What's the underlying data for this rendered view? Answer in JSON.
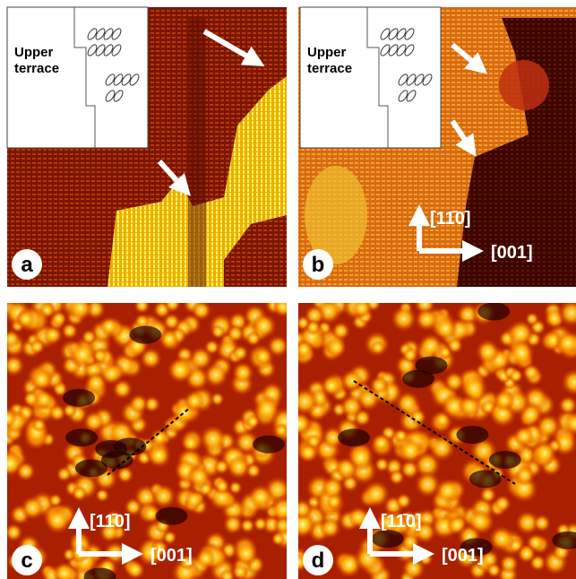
{
  "panels": [
    {
      "label": "a",
      "inset_lines": [
        "Upper",
        "terrace"
      ]
    },
    {
      "label": "b",
      "inset_lines": [
        "Upper",
        "terrace"
      ],
      "direction_labels": [
        "[11̄0]",
        "[001]"
      ]
    },
    {
      "label": "c",
      "direction_labels": [
        "[11̄0]",
        "[001]"
      ]
    },
    {
      "label": "d",
      "direction_labels": [
        "[11̄0]",
        "[001]"
      ]
    }
  ]
}
